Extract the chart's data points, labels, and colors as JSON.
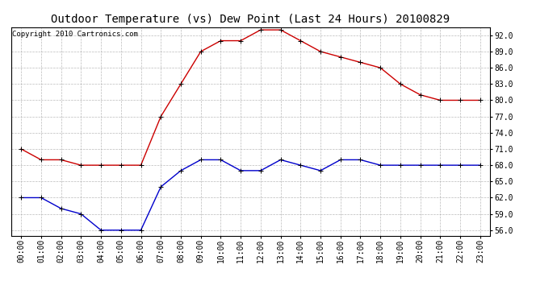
{
  "title": "Outdoor Temperature (vs) Dew Point (Last 24 Hours) 20100829",
  "copyright": "Copyright 2010 Cartronics.com",
  "x_labels": [
    "00:00",
    "01:00",
    "02:00",
    "03:00",
    "04:00",
    "05:00",
    "06:00",
    "07:00",
    "08:00",
    "09:00",
    "10:00",
    "11:00",
    "12:00",
    "13:00",
    "14:00",
    "15:00",
    "16:00",
    "17:00",
    "18:00",
    "19:00",
    "20:00",
    "21:00",
    "22:00",
    "23:00"
  ],
  "temp_red": [
    71,
    69,
    69,
    68,
    68,
    68,
    68,
    77,
    83,
    89,
    91,
    91,
    93,
    93,
    91,
    89,
    88,
    87,
    86,
    83,
    81,
    80,
    80,
    80
  ],
  "dew_blue": [
    62,
    62,
    60,
    59,
    56,
    56,
    56,
    64,
    67,
    69,
    69,
    67,
    67,
    69,
    68,
    67,
    69,
    69,
    68,
    68,
    68,
    68,
    68,
    68
  ],
  "ylim_min": 55.0,
  "ylim_max": 93.5,
  "yticks": [
    56.0,
    59.0,
    62.0,
    65.0,
    68.0,
    71.0,
    74.0,
    77.0,
    80.0,
    83.0,
    86.0,
    89.0,
    92.0
  ],
  "line_color_red": "#cc0000",
  "line_color_blue": "#0000cc",
  "marker": "+",
  "background_color": "#ffffff",
  "grid_color": "#aaaaaa",
  "title_fontsize": 10,
  "tick_fontsize": 7,
  "copyright_fontsize": 6.5
}
